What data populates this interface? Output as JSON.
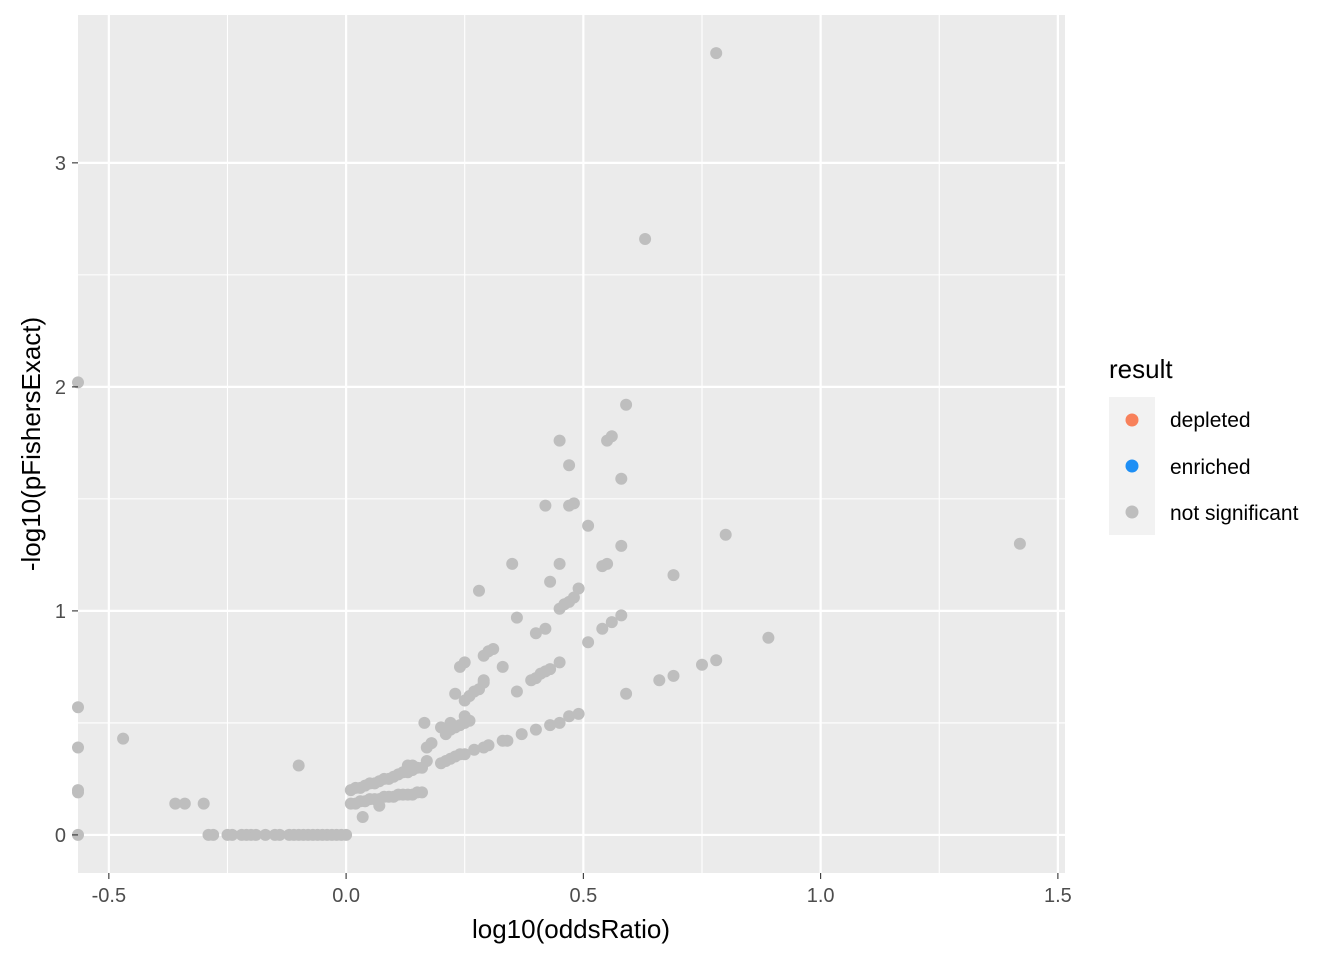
{
  "chart_data": {
    "type": "scatter",
    "xlabel": "log10(oddsRatio)",
    "ylabel": "-log10(pFishersExact)",
    "xlim": [
      -0.565,
      1.515
    ],
    "ylim": [
      -0.17,
      3.66
    ],
    "x_ticks": [
      -0.5,
      0.0,
      0.5,
      1.0,
      1.5
    ],
    "x_tick_labels": [
      "-0.5",
      "0.0",
      "0.5",
      "1.0",
      "1.5"
    ],
    "y_ticks": [
      0,
      1,
      2,
      3
    ],
    "y_tick_labels": [
      "0",
      "1",
      "2",
      "3"
    ],
    "grid": true,
    "legend": {
      "title": "result",
      "position": "right",
      "entries": [
        {
          "label": "depleted",
          "color": "#f8815b"
        },
        {
          "label": "enriched",
          "color": "#1e8ff5"
        },
        {
          "label": "not significant",
          "color": "#bebebe"
        }
      ]
    },
    "colors": {
      "panel": "#ebebeb",
      "grid": "#ffffff",
      "point": "#bebebe"
    },
    "series": [
      {
        "name": "not significant",
        "points": [
          [
            0.78,
            3.49
          ],
          [
            0.63,
            2.66
          ],
          [
            -0.565,
            2.02
          ],
          [
            -0.565,
            0.57
          ],
          [
            -0.565,
            0.39
          ],
          [
            -0.565,
            0.2
          ],
          [
            -0.565,
            0.19
          ],
          [
            -0.565,
            0.0
          ],
          [
            -0.47,
            0.43
          ],
          [
            -0.36,
            0.14
          ],
          [
            -0.34,
            0.14
          ],
          [
            -0.3,
            0.14
          ],
          [
            -0.29,
            0.0
          ],
          [
            -0.28,
            0.0
          ],
          [
            -0.25,
            0.0
          ],
          [
            -0.24,
            0.0
          ],
          [
            -0.22,
            0.0
          ],
          [
            -0.21,
            0.0
          ],
          [
            -0.2,
            0.0
          ],
          [
            -0.19,
            0.0
          ],
          [
            -0.17,
            0.0
          ],
          [
            -0.15,
            0.0
          ],
          [
            -0.14,
            0.0
          ],
          [
            -0.12,
            0.0
          ],
          [
            -0.11,
            0.0
          ],
          [
            -0.1,
            0.0
          ],
          [
            -0.09,
            0.0
          ],
          [
            -0.08,
            0.0
          ],
          [
            -0.07,
            0.0
          ],
          [
            -0.06,
            0.0
          ],
          [
            -0.05,
            0.0
          ],
          [
            -0.04,
            0.0
          ],
          [
            -0.03,
            0.0
          ],
          [
            -0.02,
            0.0
          ],
          [
            -0.01,
            0.0
          ],
          [
            0.0,
            0.0
          ],
          [
            -0.1,
            0.31
          ],
          [
            0.01,
            0.14
          ],
          [
            0.02,
            0.14
          ],
          [
            0.03,
            0.15
          ],
          [
            0.04,
            0.15
          ],
          [
            0.05,
            0.16
          ],
          [
            0.06,
            0.16
          ],
          [
            0.07,
            0.16
          ],
          [
            0.08,
            0.17
          ],
          [
            0.09,
            0.17
          ],
          [
            0.1,
            0.17
          ],
          [
            0.11,
            0.18
          ],
          [
            0.12,
            0.18
          ],
          [
            0.13,
            0.18
          ],
          [
            0.14,
            0.18
          ],
          [
            0.15,
            0.19
          ],
          [
            0.16,
            0.19
          ],
          [
            0.035,
            0.08
          ],
          [
            0.07,
            0.13
          ],
          [
            0.01,
            0.2
          ],
          [
            0.02,
            0.21
          ],
          [
            0.03,
            0.21
          ],
          [
            0.04,
            0.22
          ],
          [
            0.05,
            0.23
          ],
          [
            0.06,
            0.23
          ],
          [
            0.07,
            0.24
          ],
          [
            0.08,
            0.25
          ],
          [
            0.09,
            0.25
          ],
          [
            0.1,
            0.26
          ],
          [
            0.11,
            0.27
          ],
          [
            0.12,
            0.28
          ],
          [
            0.13,
            0.28
          ],
          [
            0.14,
            0.29
          ],
          [
            0.15,
            0.3
          ],
          [
            0.16,
            0.3
          ],
          [
            0.17,
            0.33
          ],
          [
            0.13,
            0.31
          ],
          [
            0.14,
            0.31
          ],
          [
            0.2,
            0.32
          ],
          [
            0.21,
            0.33
          ],
          [
            0.22,
            0.34
          ],
          [
            0.23,
            0.35
          ],
          [
            0.24,
            0.36
          ],
          [
            0.25,
            0.36
          ],
          [
            0.27,
            0.38
          ],
          [
            0.29,
            0.39
          ],
          [
            0.3,
            0.4
          ],
          [
            0.33,
            0.42
          ],
          [
            0.34,
            0.42
          ],
          [
            0.37,
            0.45
          ],
          [
            0.4,
            0.47
          ],
          [
            0.43,
            0.49
          ],
          [
            0.45,
            0.5
          ],
          [
            0.47,
            0.53
          ],
          [
            0.49,
            0.54
          ],
          [
            0.17,
            0.39
          ],
          [
            0.18,
            0.41
          ],
          [
            0.2,
            0.48
          ],
          [
            0.21,
            0.45
          ],
          [
            0.22,
            0.47
          ],
          [
            0.22,
            0.5
          ],
          [
            0.23,
            0.48
          ],
          [
            0.24,
            0.49
          ],
          [
            0.25,
            0.5
          ],
          [
            0.25,
            0.53
          ],
          [
            0.26,
            0.51
          ],
          [
            0.165,
            0.5
          ],
          [
            0.23,
            0.63
          ],
          [
            0.25,
            0.6
          ],
          [
            0.26,
            0.62
          ],
          [
            0.27,
            0.64
          ],
          [
            0.28,
            0.65
          ],
          [
            0.29,
            0.68
          ],
          [
            0.29,
            0.69
          ],
          [
            0.24,
            0.75
          ],
          [
            0.25,
            0.77
          ],
          [
            0.29,
            0.8
          ],
          [
            0.3,
            0.82
          ],
          [
            0.31,
            0.83
          ],
          [
            0.33,
            0.75
          ],
          [
            0.36,
            0.64
          ],
          [
            0.39,
            0.69
          ],
          [
            0.4,
            0.7
          ],
          [
            0.41,
            0.72
          ],
          [
            0.42,
            0.73
          ],
          [
            0.43,
            0.74
          ],
          [
            0.45,
            0.77
          ],
          [
            0.4,
            0.9
          ],
          [
            0.42,
            0.92
          ],
          [
            0.36,
            0.97
          ],
          [
            0.28,
            1.09
          ],
          [
            0.35,
            1.21
          ],
          [
            0.43,
            1.13
          ],
          [
            0.45,
            1.01
          ],
          [
            0.46,
            1.03
          ],
          [
            0.47,
            1.04
          ],
          [
            0.48,
            1.06
          ],
          [
            0.49,
            1.1
          ],
          [
            0.51,
            0.86
          ],
          [
            0.54,
            0.92
          ],
          [
            0.56,
            0.95
          ],
          [
            0.58,
            0.98
          ],
          [
            0.59,
            0.63
          ],
          [
            0.45,
            1.21
          ],
          [
            0.51,
            1.38
          ],
          [
            0.54,
            1.2
          ],
          [
            0.55,
            1.21
          ],
          [
            0.58,
            1.29
          ],
          [
            0.42,
            1.47
          ],
          [
            0.47,
            1.47
          ],
          [
            0.48,
            1.48
          ],
          [
            0.47,
            1.65
          ],
          [
            0.45,
            1.76
          ],
          [
            0.55,
            1.76
          ],
          [
            0.56,
            1.78
          ],
          [
            0.58,
            1.59
          ],
          [
            0.59,
            1.92
          ],
          [
            0.66,
            0.69
          ],
          [
            0.69,
            0.71
          ],
          [
            0.69,
            1.16
          ],
          [
            0.75,
            0.76
          ],
          [
            0.78,
            0.78
          ],
          [
            0.8,
            1.34
          ],
          [
            0.89,
            0.88
          ],
          [
            1.42,
            1.3
          ]
        ]
      }
    ]
  }
}
